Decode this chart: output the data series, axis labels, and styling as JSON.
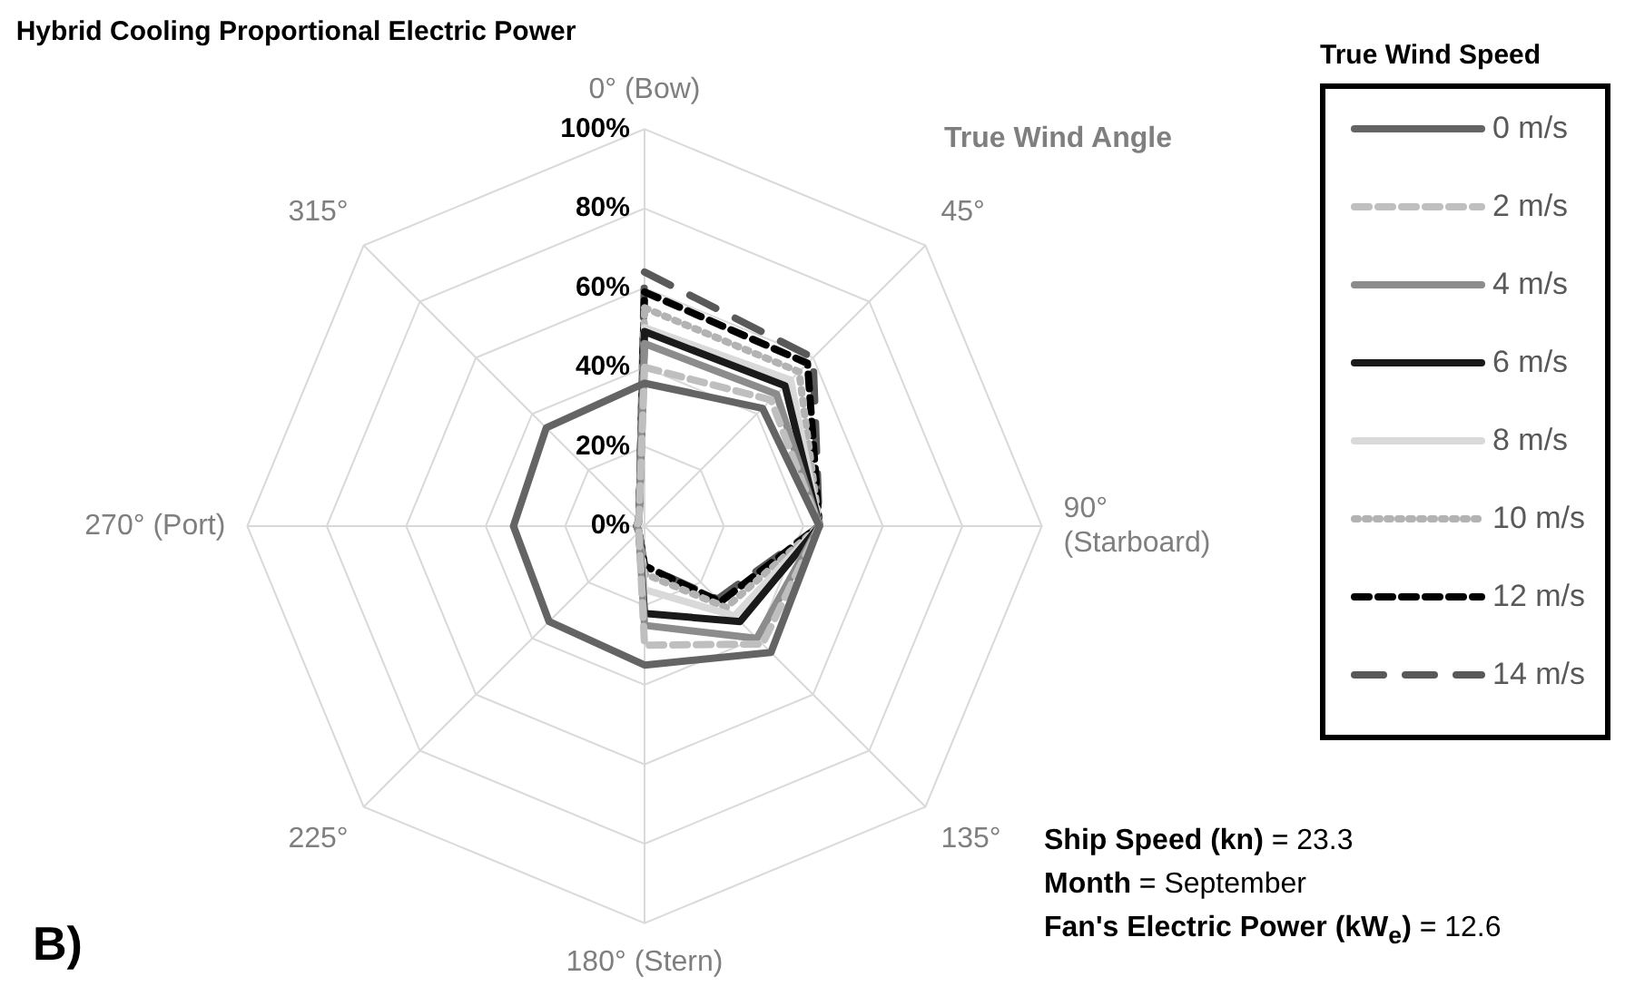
{
  "chart_data": {
    "type": "radar",
    "title": "Hybrid Cooling  Proportional Electric Power",
    "xlabel": "True Wind Angle",
    "legend_title": "True Wind Speed",
    "legend": "right",
    "categories": [
      "0° (Bow)",
      "45°",
      "90° (Starboard)",
      "135°",
      "180° (Stern)",
      "225°",
      "270° (Port)",
      "315°"
    ],
    "ylim": [
      0,
      100
    ],
    "yticks": [
      {
        "value": 0,
        "label": "0%"
      },
      {
        "value": 20,
        "label": "20%"
      },
      {
        "value": 40,
        "label": "40%"
      },
      {
        "value": 60,
        "label": "60%"
      },
      {
        "value": 80,
        "label": "80%"
      },
      {
        "value": 100,
        "label": "100%"
      }
    ],
    "grid": true,
    "marker": "none",
    "series": [
      {
        "name": "0 m/s",
        "color": "#646464",
        "line_style": "solid",
        "values": [
          36,
          42,
          44,
          45,
          35,
          34,
          33,
          35
        ]
      },
      {
        "name": "2 m/s",
        "color": "#bfbfbf",
        "line_style": "dashed",
        "values": [
          40,
          45,
          44,
          42,
          30,
          2,
          2,
          2
        ]
      },
      {
        "name": "4 m/s",
        "color": "#8c8c8c",
        "line_style": "solid",
        "values": [
          46,
          47,
          44,
          40,
          25,
          2,
          2,
          2
        ]
      },
      {
        "name": "6 m/s",
        "color": "#1a1a1a",
        "line_style": "solid",
        "values": [
          49,
          50,
          44,
          34,
          22,
          2,
          2,
          2
        ]
      },
      {
        "name": "8 m/s",
        "color": "#d9d9d9",
        "line_style": "solid",
        "values": [
          50,
          52,
          44,
          32,
          16,
          2,
          2,
          2
        ]
      },
      {
        "name": "10 m/s",
        "color": "#b3b3b3",
        "line_style": "dotted",
        "values": [
          55,
          55,
          44,
          29,
          12,
          2,
          2,
          2
        ]
      },
      {
        "name": "12 m/s",
        "color": "#000000",
        "line_style": "dashed",
        "values": [
          59,
          58,
          44,
          27,
          10,
          2,
          2,
          2
        ]
      },
      {
        "name": "14 m/s",
        "color": "#595959",
        "line_style": "longdash",
        "values": [
          64,
          60,
          44,
          26,
          10,
          2,
          2,
          2
        ]
      }
    ],
    "annotations": [
      "Ship Speed (kn) = 23.3",
      "Month = September",
      "Fan's Electric Power (kW$_{e}$) = 12.6",
      "B)"
    ]
  }
}
